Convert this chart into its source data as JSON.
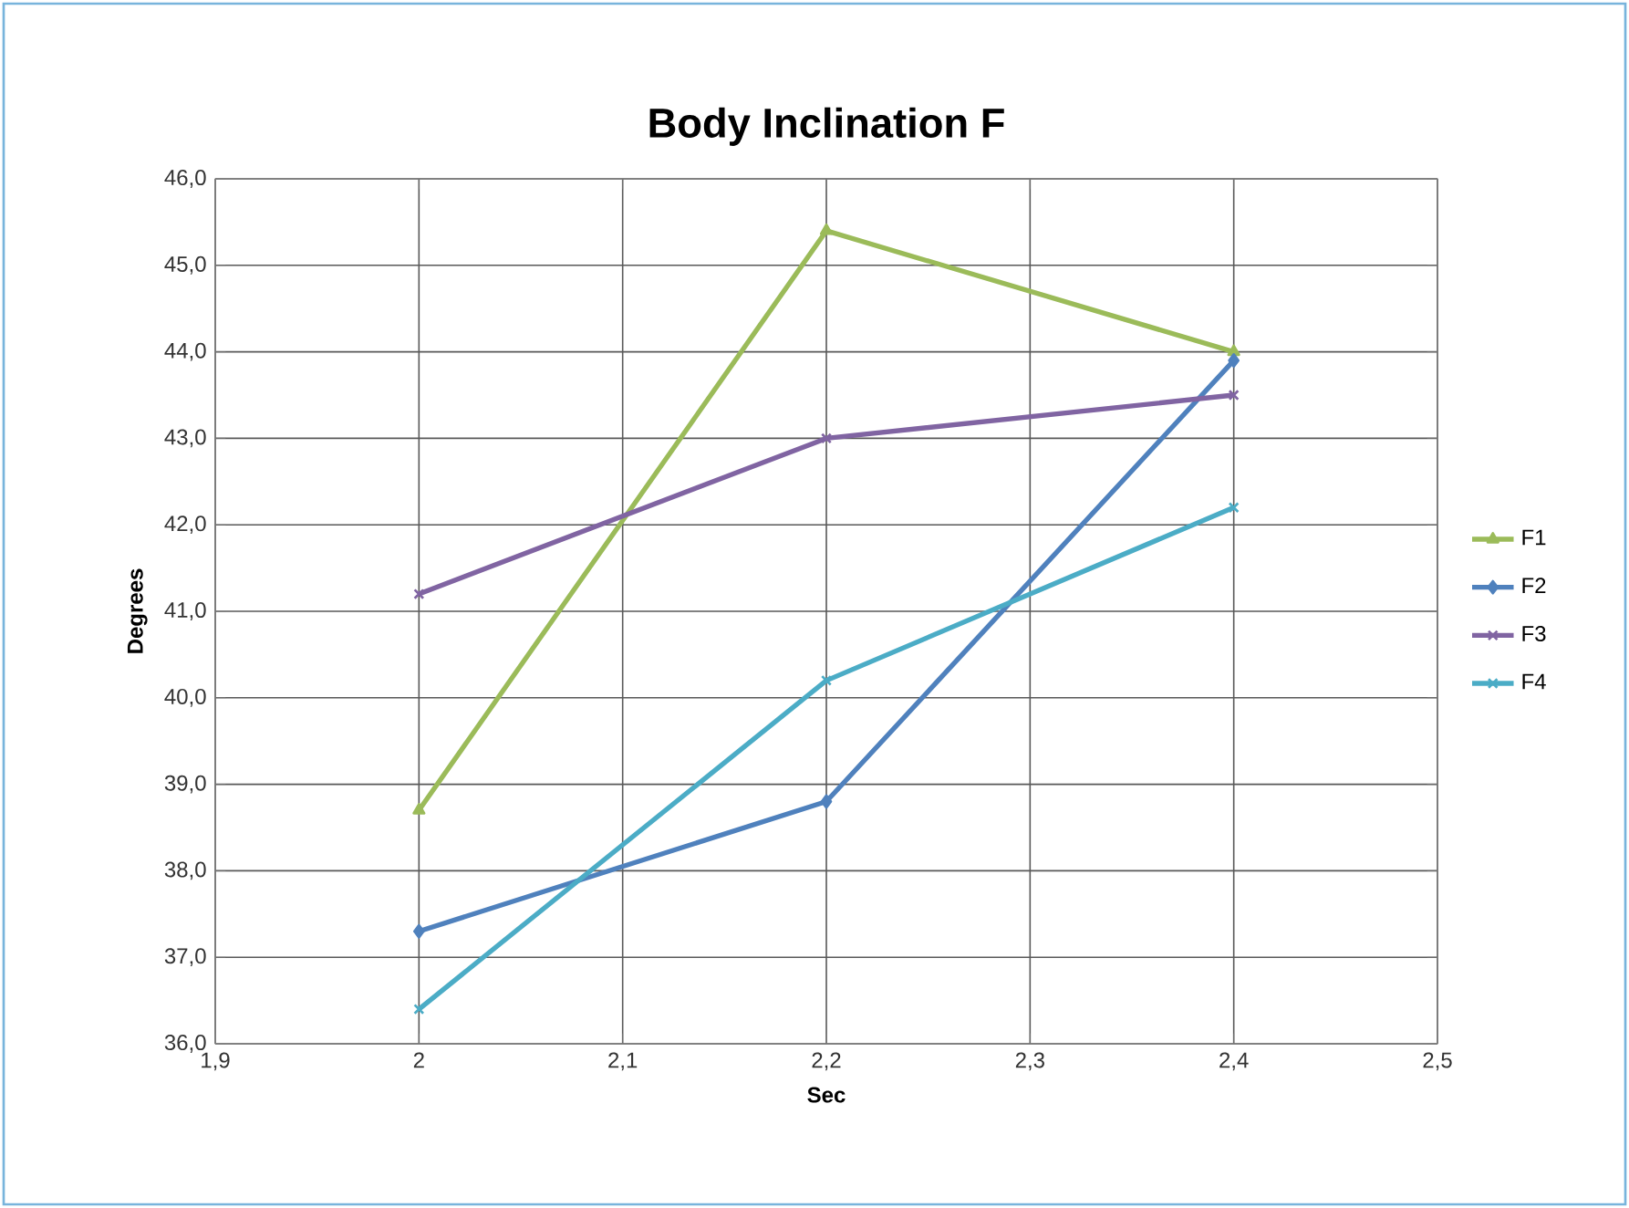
{
  "chart_data": {
    "type": "line",
    "title": "Body Inclination F",
    "xlabel": "Sec",
    "ylabel": "Degrees",
    "xlim": [
      1.9,
      2.5
    ],
    "xticks": [
      {
        "value": 1.9,
        "label": "1,9"
      },
      2,
      {
        "value": 2.1,
        "label": "2,1"
      },
      {
        "value": 2.2,
        "label": "2,2"
      },
      {
        "value": 2.3,
        "label": "2,3"
      },
      {
        "value": 2.4,
        "label": "2,4"
      },
      {
        "value": 2.5,
        "label": "2,5"
      }
    ],
    "ylim": [
      36,
      46
    ],
    "yticks": [
      {
        "value": 36,
        "label": "36,0"
      },
      {
        "value": 37,
        "label": "37,0"
      },
      {
        "value": 38,
        "label": "38,0"
      },
      {
        "value": 39,
        "label": "39,0"
      },
      {
        "value": 40,
        "label": "40,0"
      },
      {
        "value": 41,
        "label": "41,0"
      },
      {
        "value": 42,
        "label": "42,0"
      },
      {
        "value": 43,
        "label": "43,0"
      },
      {
        "value": 44,
        "label": "44,0"
      },
      {
        "value": 45,
        "label": "45,0"
      },
      {
        "value": 46,
        "label": "46,0"
      }
    ],
    "x": [
      2,
      2.2,
      2.4
    ],
    "grid": true,
    "legend": "right",
    "series": [
      {
        "name": "F1",
        "color": "#9bbb59",
        "marker": "triangle",
        "values": [
          38.7,
          45.4,
          44.0
        ]
      },
      {
        "name": "F2",
        "color": "#4f81bd",
        "marker": "diamond",
        "values": [
          37.3,
          38.8,
          43.9
        ]
      },
      {
        "name": "F3",
        "color": "#8064a2",
        "marker": "cross",
        "values": [
          41.2,
          43.0,
          43.5
        ]
      },
      {
        "name": "F4",
        "color": "#4bacc6",
        "marker": "cross",
        "values": [
          36.4,
          40.2,
          42.2
        ]
      }
    ]
  }
}
